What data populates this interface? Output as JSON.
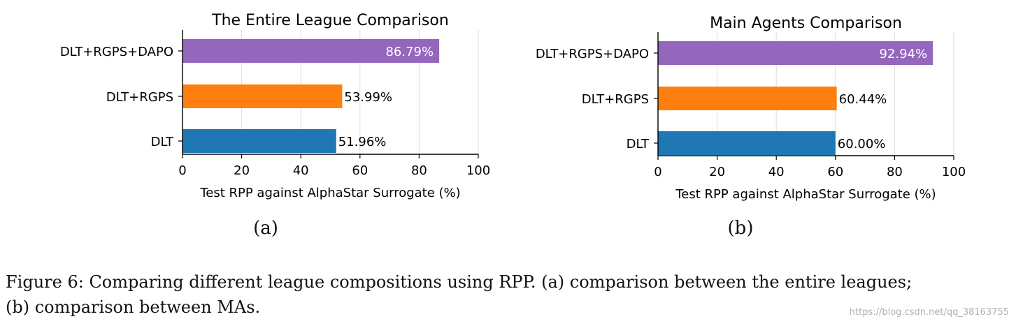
{
  "chart_data": [
    {
      "type": "bar",
      "orientation": "horizontal",
      "title": "The Entire League Comparison",
      "xlabel": "Test RPP against AlphaStar Surrogate (%)",
      "ylabel": "",
      "xlim": [
        0,
        100
      ],
      "xticks": [
        0,
        20,
        40,
        60,
        80,
        100
      ],
      "grid": "vertical",
      "categories": [
        "DLT+RGPS+DAPO",
        "DLT+RGPS",
        "DLT"
      ],
      "values": [
        86.79,
        53.99,
        51.96
      ],
      "labels": [
        "86.79%",
        "53.99%",
        "51.96%"
      ],
      "colors": [
        "#9467bd",
        "#ff7f0e",
        "#1f77b4"
      ],
      "label_inside": [
        true,
        false,
        false
      ],
      "panel_label": "(a)"
    },
    {
      "type": "bar",
      "orientation": "horizontal",
      "title": "Main Agents Comparison",
      "xlabel": "Test RPP against AlphaStar Surrogate (%)",
      "ylabel": "",
      "xlim": [
        0,
        100
      ],
      "xticks": [
        0,
        20,
        40,
        60,
        80,
        100
      ],
      "grid": "vertical",
      "categories": [
        "DLT+RGPS+DAPO",
        "DLT+RGPS",
        "DLT"
      ],
      "values": [
        92.94,
        60.44,
        60.0
      ],
      "labels": [
        "92.94%",
        "60.44%",
        "60.00%"
      ],
      "colors": [
        "#9467bd",
        "#ff7f0e",
        "#1f77b4"
      ],
      "label_inside": [
        true,
        false,
        false
      ],
      "panel_label": "(b)"
    }
  ],
  "caption": {
    "line1": "Figure 6:   Comparing different league compositions using RPP. (a) comparison between the entire leagues;",
    "line2": "(b) comparison between MAs."
  },
  "watermark": "https://blog.csdn.net/qq_38163755"
}
